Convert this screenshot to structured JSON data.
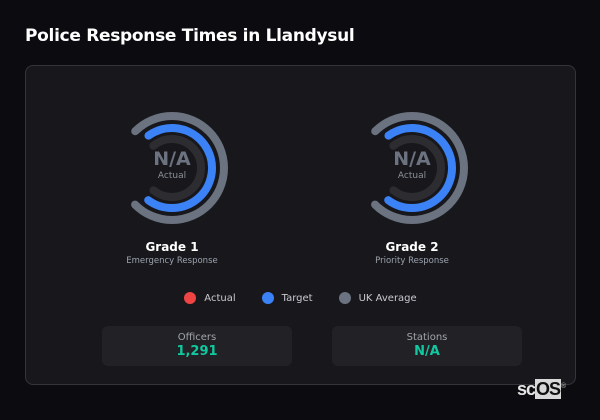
{
  "title": "Police Response Times in Llandysul",
  "colors": {
    "actual": "#ef4444",
    "target": "#3b82f6",
    "uk_average": "#6b7280",
    "accent_value": "#10c9a0"
  },
  "gauges": [
    {
      "grade": "Grade 1",
      "description": "Emergency Response",
      "value": "N/A",
      "value_label": "Actual"
    },
    {
      "grade": "Grade 2",
      "description": "Priority Response",
      "value": "N/A",
      "value_label": "Actual"
    }
  ],
  "legend": [
    {
      "label": "Actual",
      "color": "#ef4444"
    },
    {
      "label": "Target",
      "color": "#3b82f6"
    },
    {
      "label": "UK Average",
      "color": "#6b7280"
    }
  ],
  "stats": [
    {
      "label": "Officers",
      "value": "1,291"
    },
    {
      "label": "Stations",
      "value": "N/A"
    }
  ],
  "logo": {
    "text": "scOS",
    "mark": "®"
  }
}
